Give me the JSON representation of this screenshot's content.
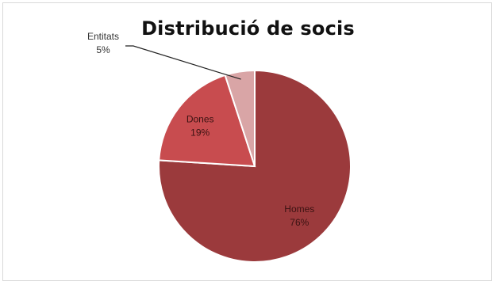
{
  "chart_data": {
    "type": "pie",
    "title": "Distribució de socis",
    "slices": [
      {
        "label": "Homes",
        "percent_label": "76%",
        "value": 76,
        "color": "#9b3a3c"
      },
      {
        "label": "Dones",
        "percent_label": "19%",
        "value": 19,
        "color": "#c84c4f"
      },
      {
        "label": "Entitats",
        "percent_label": "5%",
        "value": 5,
        "color": "#d9a5a6"
      }
    ],
    "legend": "none",
    "data_labels": "category and percentage"
  }
}
